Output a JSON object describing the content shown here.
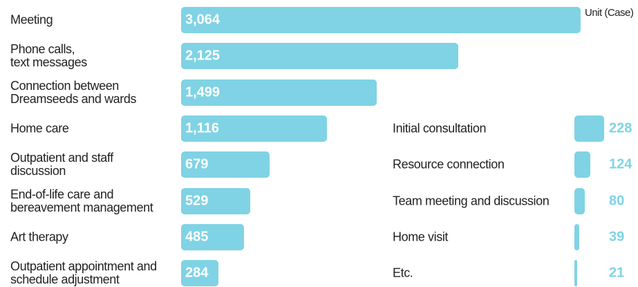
{
  "chart_data": [
    {
      "type": "bar",
      "orientation": "horizontal",
      "color": "#7fd3e4",
      "annotation": "Unit (Case)",
      "categories": [
        "Meeting",
        "Phone calls,\ntext messages",
        "Connection between\nDreamseeds and wards",
        "Home care",
        "Outpatient and staff\ndiscussion",
        "End-of-life care and\nbereavement management",
        "Art therapy",
        "Outpatient appointment and\nschedule adjustment"
      ],
      "values": [
        3064,
        2125,
        1499,
        1116,
        679,
        529,
        485,
        284
      ],
      "value_labels": [
        "3,064",
        "2,125",
        "1,499",
        "1,116",
        "679",
        "529",
        "485",
        "284"
      ]
    },
    {
      "type": "bar",
      "orientation": "horizontal",
      "color": "#7fd3e4",
      "categories": [
        "Initial consultation",
        "Resource connection",
        "Team meeting and discussion",
        "Home visit",
        "Etc."
      ],
      "values": [
        228,
        124,
        80,
        39,
        21
      ]
    }
  ]
}
